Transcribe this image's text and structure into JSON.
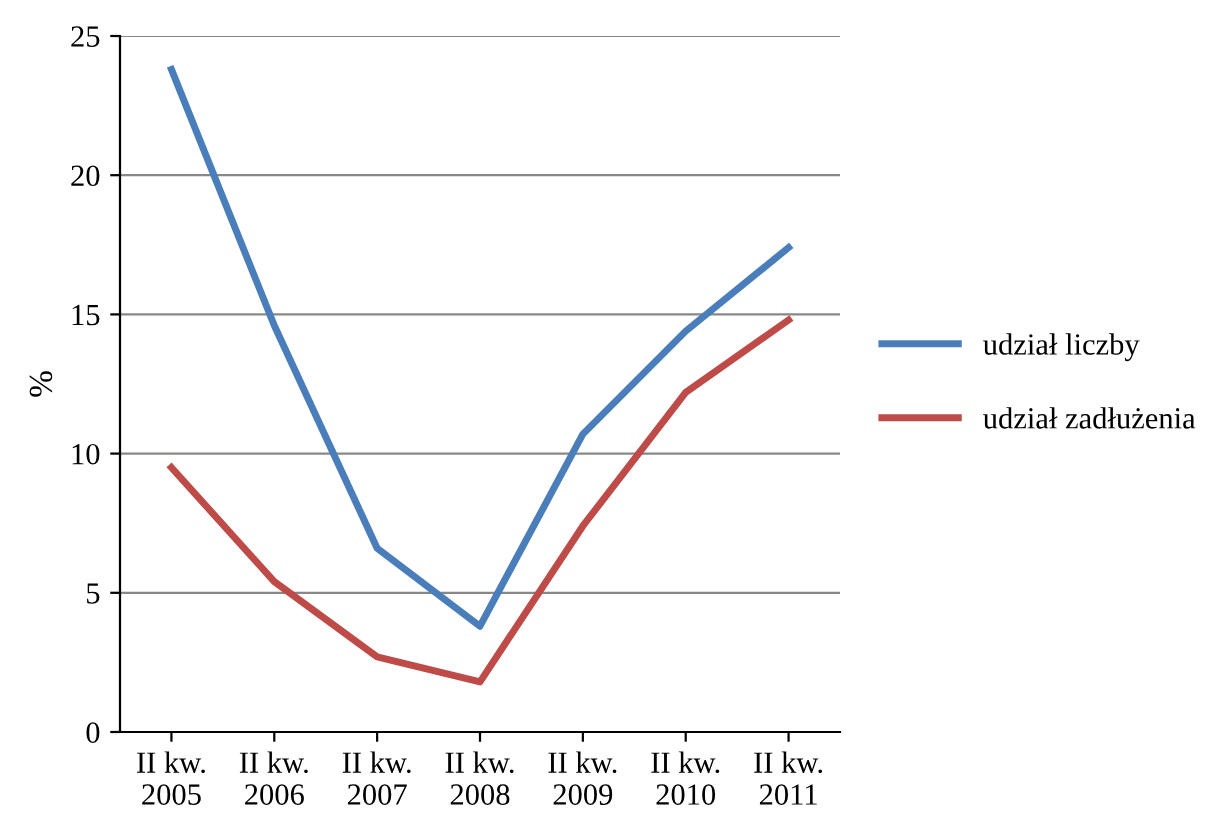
{
  "chart_data": {
    "type": "line",
    "ylabel": "%",
    "categories": [
      "II kw.\n2005",
      "II kw.\n2006",
      "II kw.\n2007",
      "II kw.\n2008",
      "II kw.\n2009",
      "II kw.\n2010",
      "II kw.\n2011"
    ],
    "series": [
      {
        "name": "udział liczby",
        "color": "#4a7ebb",
        "values": [
          23.8,
          14.6,
          6.6,
          3.8,
          10.7,
          14.4,
          17.4
        ]
      },
      {
        "name": "udział zadłużenia",
        "color": "#be4b48",
        "values": [
          9.5,
          5.4,
          2.7,
          1.8,
          7.4,
          12.2,
          14.8
        ]
      }
    ],
    "ylim": [
      0,
      25
    ],
    "yticks": [
      0,
      5,
      10,
      15,
      20,
      25
    ],
    "grid": "y",
    "legend": "right",
    "marker": "none",
    "line_style": "solid"
  }
}
